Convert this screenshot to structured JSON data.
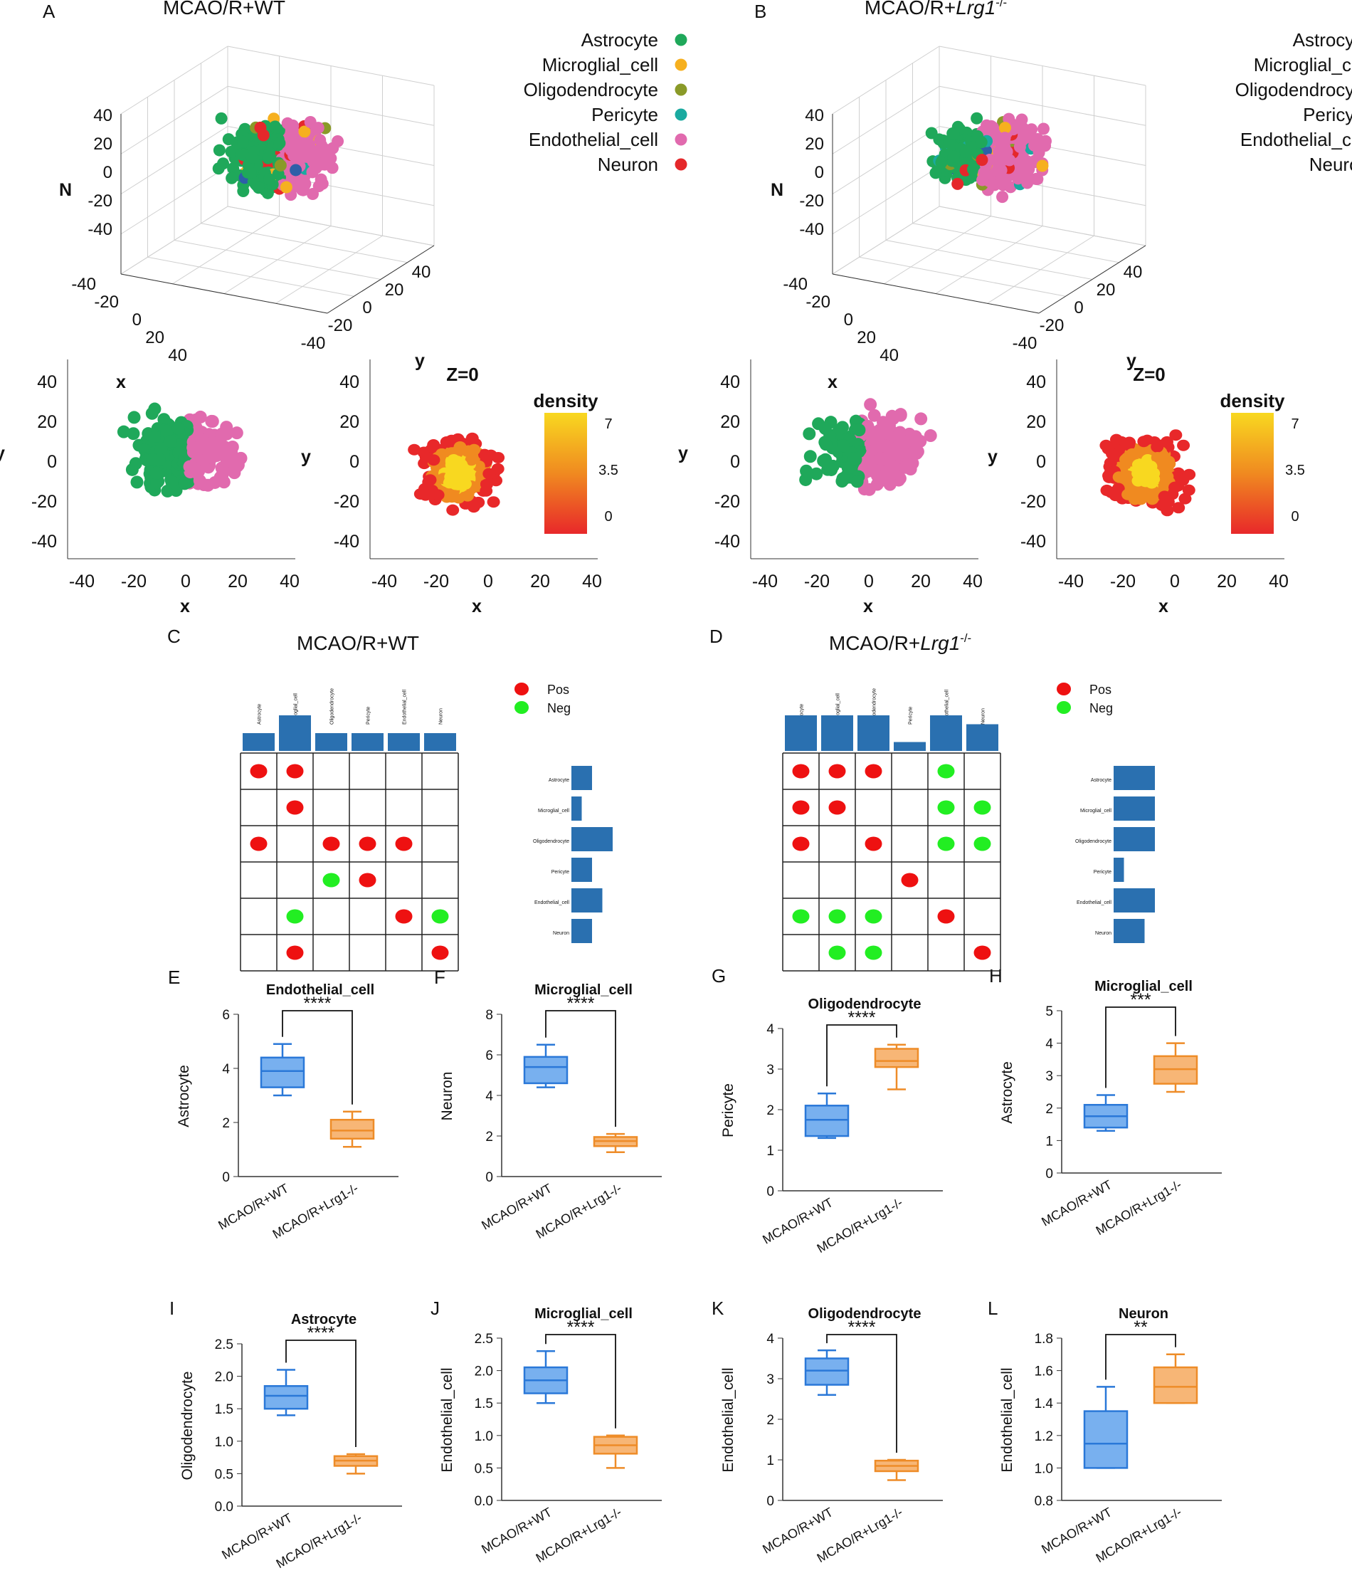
{
  "colors": {
    "astrocyte": "#1fa85a",
    "microglial": "#f6b01f",
    "oligodendrocyte": "#8a9a28",
    "pericyte": "#1aaaa0",
    "endothelial": "#e16aae",
    "neuron": "#e5282b",
    "pericyte_dark": "#2e5fa8",
    "pos": "#ee1111",
    "neg": "#22ee22",
    "bar": "#2a70b0",
    "wt_fill": "#78b0ef",
    "wt_stroke": "#2a78d8",
    "ko_fill": "#f7b676",
    "ko_stroke": "#ee8c28",
    "density_low": "#e8282a",
    "density_mid": "#f08a20",
    "density_high": "#f8d820"
  },
  "chart_data": [
    {
      "panel": "A",
      "type": "scatter",
      "title": "MCAO/R+WT",
      "views": [
        "3d",
        "xy",
        "density"
      ],
      "axes3d": {
        "z_label": "N",
        "x_label": "x",
        "y_label": "y",
        "z_ticks": [
          "40",
          "20",
          "0",
          "-20",
          "-40"
        ],
        "x_ticks": [
          "-40",
          "-20",
          "0",
          "20",
          "40"
        ],
        "y_ticks": [
          "-40",
          "-20",
          "0",
          "20",
          "40"
        ]
      },
      "legend": [
        "Astrocyte",
        "Microglial_cell",
        "Oligodendrocyte",
        "Pericyte",
        "Endothelial_cell",
        "Neuron"
      ],
      "xy": {
        "xlabel": "x",
        "ylabel": "y",
        "x_ticks": [
          "-40",
          "-20",
          "0",
          "20",
          "40"
        ],
        "y_ticks": [
          "40",
          "20",
          "0",
          "-20",
          "-40"
        ],
        "xlim": [
          -45,
          45
        ],
        "ylim": [
          -45,
          45
        ]
      },
      "density": {
        "title": "Z=0",
        "legend_title": "density",
        "scale_ticks": [
          "7",
          "3.5",
          "0"
        ],
        "xlabel": "x",
        "ylabel": "y",
        "x_ticks": [
          "-40",
          "-20",
          "0",
          "20",
          "40"
        ],
        "y_ticks": [
          "40",
          "20",
          "0",
          "-20",
          "-40"
        ]
      }
    },
    {
      "panel": "B",
      "type": "scatter",
      "title_main": "MCAO/R+",
      "title_ital": "Lrg1",
      "title_sup": "-/-",
      "views": [
        "3d",
        "xy",
        "density"
      ],
      "axes3d": {
        "z_label": "N",
        "x_label": "x",
        "y_label": "y",
        "z_ticks": [
          "40",
          "20",
          "0",
          "-20",
          "-40"
        ],
        "x_ticks": [
          "-40",
          "-20",
          "0",
          "20",
          "40"
        ],
        "y_ticks": [
          "-40",
          "-20",
          "0",
          "20",
          "40"
        ]
      },
      "legend": [
        "Astrocyte",
        "Microglial_cell",
        "Oligodendrocyte",
        "Pericyte",
        "Endothelial_cell",
        "Neuron"
      ],
      "xy": {
        "xlabel": "x",
        "ylabel": "y",
        "x_ticks": [
          "-40",
          "-20",
          "0",
          "20",
          "40"
        ],
        "y_ticks": [
          "40",
          "20",
          "0",
          "-20",
          "-40"
        ],
        "xlim": [
          -45,
          45
        ],
        "ylim": [
          -45,
          45
        ]
      },
      "density": {
        "title": "Z=0",
        "legend_title": "density",
        "scale_ticks": [
          "7",
          "3.5",
          "0"
        ],
        "xlabel": "x",
        "ylabel": "y",
        "x_ticks": [
          "-40",
          "-20",
          "0",
          "20",
          "40"
        ],
        "y_ticks": [
          "40",
          "20",
          "0",
          "-20",
          "-40"
        ]
      }
    },
    {
      "panel": "C",
      "type": "table",
      "title": "MCAO/R+WT",
      "cell_types": [
        "Astrocyte",
        "Microglial_cell",
        "Oligodendrocyte",
        "Pericyte",
        "Endothelial_cell",
        "Neuron"
      ],
      "legend": [
        "Pos",
        "Neg"
      ],
      "col_totals": [
        2,
        4,
        2,
        2,
        2,
        2
      ],
      "row_totals": [
        2,
        1,
        4,
        2,
        3,
        2
      ],
      "matrix": [
        [
          "P",
          "P",
          "",
          "",
          "",
          ""
        ],
        [
          "",
          "P",
          "",
          "",
          "",
          ""
        ],
        [
          "P",
          "",
          "P",
          "P",
          "P",
          ""
        ],
        [
          "",
          "",
          "N",
          "P",
          "",
          ""
        ],
        [
          "",
          "N",
          "",
          "",
          "P",
          "N"
        ],
        [
          "",
          "P",
          "",
          "",
          "",
          "P"
        ]
      ]
    },
    {
      "panel": "D",
      "type": "table",
      "title_main": "MCAO/R+",
      "title_ital": "Lrg1",
      "title_sup": "-/-",
      "cell_types": [
        "Astrocyte",
        "Microglial_cell",
        "Oligodendrocyte",
        "Pericyte",
        "Endothelial_cell",
        "Neuron"
      ],
      "legend": [
        "Pos",
        "Neg"
      ],
      "col_totals": [
        4,
        4,
        4,
        1,
        4,
        3
      ],
      "row_totals": [
        4,
        4,
        4,
        1,
        4,
        3
      ],
      "matrix": [
        [
          "P",
          "P",
          "P",
          "",
          "N",
          ""
        ],
        [
          "P",
          "P",
          "",
          "",
          "N",
          "N"
        ],
        [
          "P",
          "",
          "P",
          "",
          "N",
          "N"
        ],
        [
          "",
          "",
          "",
          "P",
          "",
          ""
        ],
        [
          "N",
          "N",
          "N",
          "",
          "P",
          ""
        ],
        [
          "",
          "N",
          "N",
          "",
          "",
          "P"
        ]
      ]
    },
    {
      "panel": "E",
      "type": "bar",
      "subtype": "box",
      "title": "Endothelial_cell",
      "ylabel": "Astrocyte",
      "ylim": [
        0,
        6
      ],
      "yticks": [
        "0",
        "2",
        "4",
        "6"
      ],
      "categories": [
        "MCAO/R+WT",
        "MCAO/R+Lrg1-/-"
      ],
      "significance": "****",
      "boxes": [
        {
          "min": 3.0,
          "q1": 3.3,
          "median": 3.9,
          "q3": 4.4,
          "max": 4.9
        },
        {
          "min": 1.1,
          "q1": 1.4,
          "median": 1.7,
          "q3": 2.1,
          "max": 2.4
        }
      ]
    },
    {
      "panel": "F",
      "type": "bar",
      "subtype": "box",
      "title": "Microglial_cell",
      "ylabel": "Neuron",
      "ylim": [
        0,
        8
      ],
      "yticks": [
        "0",
        "2",
        "4",
        "6",
        "8"
      ],
      "categories": [
        "MCAO/R+WT",
        "MCAO/R+Lrg1-/-"
      ],
      "significance": "****",
      "boxes": [
        {
          "min": 4.4,
          "q1": 4.6,
          "median": 5.4,
          "q3": 5.9,
          "max": 6.5
        },
        {
          "min": 1.2,
          "q1": 1.5,
          "median": 1.75,
          "q3": 1.95,
          "max": 2.1
        }
      ]
    },
    {
      "panel": "G",
      "type": "bar",
      "subtype": "box",
      "title": "Oligodendrocyte",
      "ylabel": "Pericyte",
      "ylim": [
        0,
        4
      ],
      "yticks": [
        "0",
        "1",
        "2",
        "3",
        "4"
      ],
      "categories": [
        "MCAO/R+WT",
        "MCAO/R+Lrg1-/-"
      ],
      "significance": "****",
      "boxes": [
        {
          "min": 1.3,
          "q1": 1.35,
          "median": 1.75,
          "q3": 2.1,
          "max": 2.4
        },
        {
          "min": 2.5,
          "q1": 3.05,
          "median": 3.2,
          "q3": 3.5,
          "max": 3.6
        }
      ]
    },
    {
      "panel": "H",
      "type": "bar",
      "subtype": "box",
      "title": "Microglial_cell",
      "ylabel": "Astrocyte",
      "ylim": [
        0,
        5
      ],
      "yticks": [
        "0",
        "1",
        "2",
        "3",
        "4",
        "5"
      ],
      "categories": [
        "MCAO/R+WT",
        "MCAO/R+Lrg1-/-"
      ],
      "significance": "***",
      "boxes": [
        {
          "min": 1.3,
          "q1": 1.4,
          "median": 1.75,
          "q3": 2.1,
          "max": 2.4
        },
        {
          "min": 2.5,
          "q1": 2.75,
          "median": 3.2,
          "q3": 3.6,
          "max": 4.0
        }
      ]
    },
    {
      "panel": "I",
      "type": "bar",
      "subtype": "box",
      "title": "Astrocyte",
      "ylabel": "Oligodendrocyte",
      "ylim": [
        0,
        2.5
      ],
      "yticks": [
        "0.0",
        "0.5",
        "1.0",
        "1.5",
        "2.0",
        "2.5"
      ],
      "categories": [
        "MCAO/R+WT",
        "MCAO/R+Lrg1-/-"
      ],
      "significance": "****",
      "boxes": [
        {
          "min": 1.4,
          "q1": 1.5,
          "median": 1.7,
          "q3": 1.85,
          "max": 2.1
        },
        {
          "min": 0.5,
          "q1": 0.62,
          "median": 0.7,
          "q3": 0.77,
          "max": 0.8
        }
      ]
    },
    {
      "panel": "J",
      "type": "bar",
      "subtype": "box",
      "title": "Microglial_cell",
      "ylabel": "Endothelial_cell",
      "ylim": [
        0,
        2.5
      ],
      "yticks": [
        "0.0",
        "0.5",
        "1.0",
        "1.5",
        "2.0",
        "2.5"
      ],
      "categories": [
        "MCAO/R+WT",
        "MCAO/R+Lrg1-/-"
      ],
      "significance": "****",
      "boxes": [
        {
          "min": 1.5,
          "q1": 1.65,
          "median": 1.85,
          "q3": 2.05,
          "max": 2.3
        },
        {
          "min": 0.5,
          "q1": 0.72,
          "median": 0.85,
          "q3": 0.98,
          "max": 1.0
        }
      ]
    },
    {
      "panel": "K",
      "type": "bar",
      "subtype": "box",
      "title": "Oligodendrocyte",
      "ylabel": "Endothelial_cell",
      "ylim": [
        0,
        4
      ],
      "yticks": [
        "0",
        "1",
        "2",
        "3",
        "4"
      ],
      "categories": [
        "MCAO/R+WT",
        "MCAO/R+Lrg1-/-"
      ],
      "significance": "****",
      "boxes": [
        {
          "min": 2.6,
          "q1": 2.85,
          "median": 3.2,
          "q3": 3.5,
          "max": 3.7
        },
        {
          "min": 0.5,
          "q1": 0.72,
          "median": 0.85,
          "q3": 0.98,
          "max": 1.0
        }
      ]
    },
    {
      "panel": "L",
      "type": "bar",
      "subtype": "box",
      "title": "Neuron",
      "ylabel": "Endothelial_cell",
      "ylim": [
        0.8,
        1.8
      ],
      "yticks": [
        "0.8",
        "1.0",
        "1.2",
        "1.4",
        "1.6",
        "1.8"
      ],
      "categories": [
        "MCAO/R+WT",
        "MCAO/R+Lrg1-/-"
      ],
      "significance": "**",
      "boxes": [
        {
          "min": 1.0,
          "q1": 1.0,
          "median": 1.15,
          "q3": 1.35,
          "max": 1.5
        },
        {
          "min": 1.4,
          "q1": 1.4,
          "median": 1.5,
          "q3": 1.62,
          "max": 1.7
        }
      ]
    }
  ]
}
